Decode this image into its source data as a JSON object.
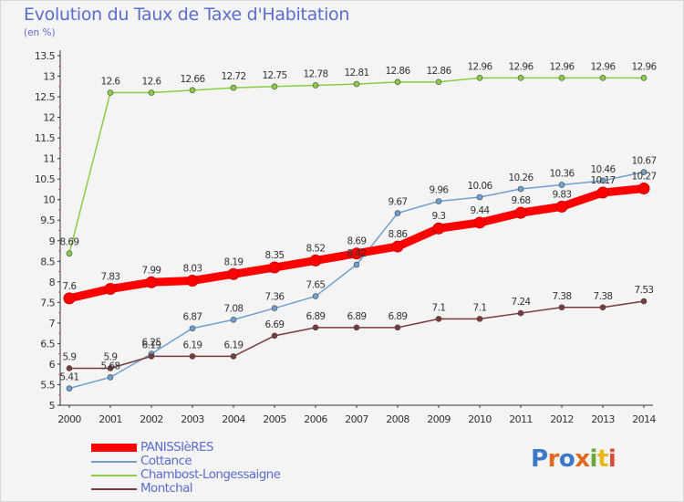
{
  "header": {
    "title": "Evolution du Taux de Taxe d'Habitation",
    "unit": "(en %)"
  },
  "logo": {
    "text": "Proxiti",
    "colors": [
      "#3a78c8",
      "#e06a1e",
      "#3a78c8",
      "#e06a1e",
      "#6aa83a",
      "#e8b81e",
      "#d84a3a"
    ]
  },
  "chart_data": {
    "type": "line",
    "x": [
      "2000",
      "2001",
      "2002",
      "2003",
      "2004",
      "2005",
      "2006",
      "2007",
      "2008",
      "2009",
      "2010",
      "2011",
      "2012",
      "2013",
      "2014"
    ],
    "ylim": [
      5,
      13.5
    ],
    "yticks": [
      "5",
      "5.5",
      "6",
      "6.5",
      "7",
      "7.5",
      "8",
      "8.5",
      "9",
      "9.5",
      "10",
      "10.5",
      "11",
      "11.5",
      "12",
      "12.5",
      "13",
      "13.5"
    ],
    "grid": false,
    "legend": "bottom-left",
    "series": [
      {
        "name": "PANISSIèRES",
        "color": "#ff0000",
        "values": [
          7.6,
          7.83,
          7.99,
          8.03,
          8.19,
          8.35,
          8.52,
          8.69,
          8.86,
          9.3,
          9.44,
          9.68,
          9.83,
          10.17,
          10.27
        ],
        "labels": [
          "7.6",
          "7.83",
          "7.99",
          "8.03",
          "8.19",
          "8.35",
          "8.52",
          "8.69",
          "8.86",
          "9.3",
          "9.44",
          "9.68",
          "9.83",
          "10.17",
          "10.27"
        ]
      },
      {
        "name": "Cottance",
        "color": "#6fa0d0",
        "values": [
          5.41,
          5.68,
          6.25,
          6.87,
          7.08,
          7.36,
          7.65,
          8.42,
          9.67,
          9.96,
          10.06,
          10.26,
          10.36,
          10.46,
          10.67
        ],
        "labels": [
          "5.41",
          "5.68",
          "6.25",
          "6.87",
          "7.08",
          "7.36",
          "7.65",
          "8.42",
          "9.67",
          "9.96",
          "10.06",
          "10.26",
          "10.36",
          "10.46",
          "10.67"
        ]
      },
      {
        "name": "Chambost-Longessaigne",
        "color": "#8ccc44",
        "values": [
          8.69,
          12.6,
          12.6,
          12.66,
          12.72,
          12.75,
          12.78,
          12.81,
          12.86,
          12.86,
          12.96,
          12.96,
          12.96,
          12.96,
          12.96
        ],
        "labels": [
          "8.69",
          "12.6",
          "12.6",
          "12.66",
          "12.72",
          "12.75",
          "12.78",
          "12.81",
          "12.86",
          "12.86",
          "12.96",
          "12.96",
          "12.96",
          "12.96",
          "12.96"
        ]
      },
      {
        "name": "Montchal",
        "color": "#7a3a3a",
        "values": [
          5.9,
          5.9,
          6.19,
          6.19,
          6.19,
          6.69,
          6.89,
          6.89,
          6.89,
          7.1,
          7.1,
          7.24,
          7.38,
          7.38,
          7.53
        ],
        "labels": [
          "5.9",
          "5.9",
          "6.19",
          "6.19",
          "6.19",
          "6.69",
          "6.89",
          "6.89",
          "6.89",
          "7.1",
          "7.1",
          "7.24",
          "7.38",
          "7.38",
          "7.53"
        ]
      }
    ]
  }
}
